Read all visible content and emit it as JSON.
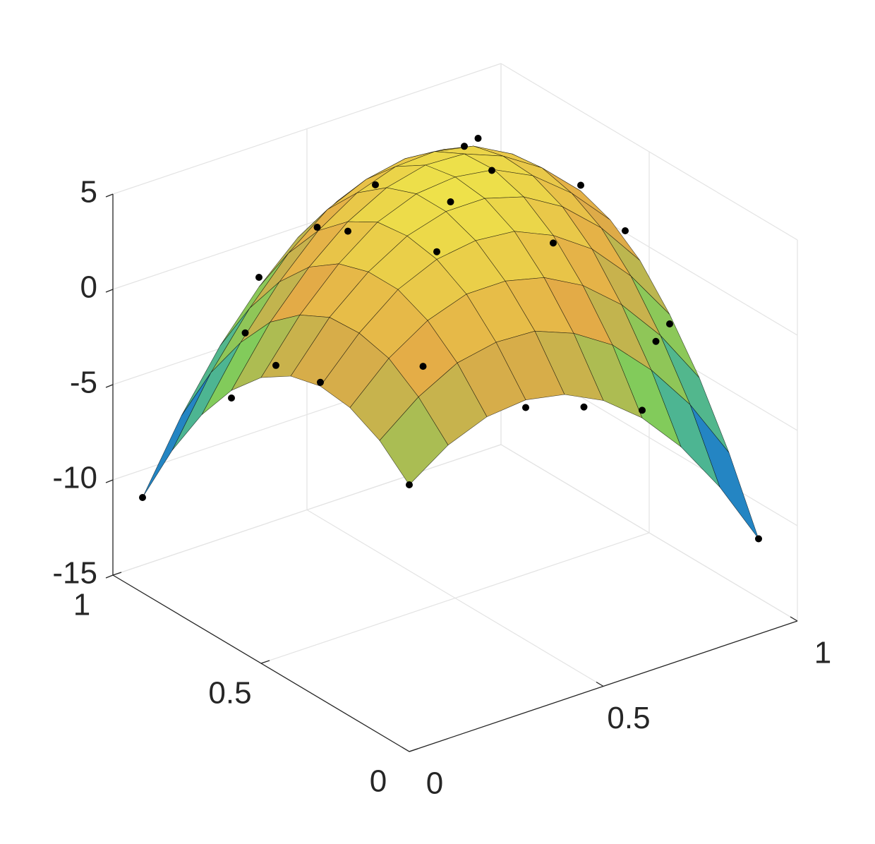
{
  "chart_data": {
    "type": "surface3d",
    "x": [
      0,
      0.1,
      0.2,
      0.3,
      0.4,
      0.5,
      0.6,
      0.7,
      0.8,
      0.9
    ],
    "y": [
      0,
      0.1,
      0.2,
      0.3,
      0.4,
      0.5,
      0.6,
      0.7,
      0.8,
      0.9
    ],
    "z": [
      [
        -1.0,
        0.4,
        1.2,
        1.4,
        1.0,
        0.0,
        -1.6,
        -3.8,
        -6.6,
        -10.0
      ],
      [
        0.4,
        2.0,
        3.1,
        3.5,
        3.4,
        2.6,
        1.3,
        -0.7,
        -3.2,
        -6.4
      ],
      [
        1.2,
        3.1,
        4.4,
        5.1,
        5.1,
        4.6,
        3.5,
        1.8,
        -0.5,
        -3.4
      ],
      [
        1.4,
        3.5,
        5.1,
        6.0,
        6.3,
        6.1,
        5.2,
        3.8,
        1.7,
        -1.0
      ],
      [
        1.0,
        3.4,
        5.1,
        6.3,
        6.9,
        6.9,
        6.3,
        5.1,
        3.3,
        0.9
      ],
      [
        0.0,
        2.6,
        4.6,
        6.1,
        6.9,
        7.1,
        6.8,
        5.8,
        4.2,
        2.1
      ],
      [
        -1.6,
        1.3,
        3.5,
        5.2,
        6.3,
        6.8,
        6.7,
        5.9,
        4.6,
        2.7
      ],
      [
        -3.8,
        -0.7,
        1.8,
        3.8,
        5.1,
        5.8,
        5.9,
        5.5,
        4.4,
        2.7
      ],
      [
        -6.6,
        -3.2,
        -0.5,
        1.7,
        3.3,
        4.2,
        4.6,
        4.4,
        3.6,
        2.2
      ],
      [
        -10.0,
        -6.4,
        -3.4,
        -1.0,
        0.9,
        2.1,
        2.7,
        2.7,
        2.2,
        1.0
      ]
    ],
    "scatter": {
      "color": "#000000",
      "x": [
        0,
        0,
        0,
        0,
        0.3,
        0.3,
        0.3,
        0.3,
        0.6,
        0.6,
        0.6,
        0.6,
        0.9,
        0.9,
        0.9,
        0.9,
        0.15,
        0.45,
        0.75,
        0.45,
        0,
        0.9,
        0.45,
        0.15,
        0.75
      ],
      "y": [
        0,
        0.3,
        0.6,
        0.9,
        0,
        0.3,
        0.6,
        0.9,
        0,
        0.3,
        0.6,
        0.9,
        0,
        0.3,
        0.6,
        0.9,
        0.15,
        0.45,
        0.75,
        0,
        0.45,
        0.45,
        0.9,
        0.75,
        0.15
      ],
      "z": [
        -1.0,
        1.6,
        -2.0,
        -10.0,
        1.0,
        6.4,
        4.7,
        -0.5,
        -1.2,
        4.8,
        7.1,
        2.3,
        -10.0,
        -1.5,
        3.0,
        1.0,
        2.8,
        6.6,
        5.1,
        0.0,
        1.1,
        2.0,
        1.1,
        -1.0,
        0.0
      ]
    },
    "xlim": [
      0,
      1
    ],
    "ylim": [
      0,
      1
    ],
    "zlim": [
      -15,
      5
    ],
    "xticks": [
      0,
      0.5,
      1
    ],
    "yticks": [
      0,
      0.5,
      1
    ],
    "zticks": [
      -15,
      -10,
      -5,
      0,
      5
    ],
    "grid": true,
    "edge_color": "#000000",
    "colormap": [
      "#3e26a8",
      "#1e9cc9",
      "#7ccd5c",
      "#e3a947",
      "#eee34a"
    ]
  }
}
